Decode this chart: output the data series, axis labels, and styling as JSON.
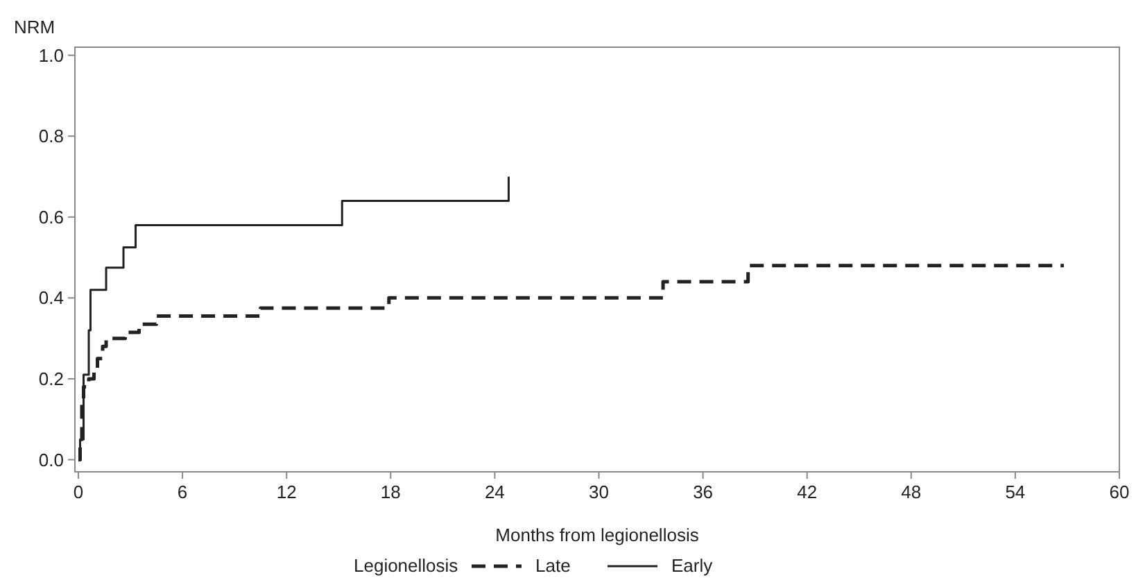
{
  "chart_data": {
    "type": "step",
    "ylabel": "NRM",
    "xlabel": "Months from legionellosis",
    "legend_title": "Legionellosis",
    "legend": "bottom",
    "grid": false,
    "marker": "none",
    "xlim": [
      -0.2,
      60
    ],
    "xticks": [
      0,
      6,
      12,
      18,
      24,
      30,
      36,
      42,
      48,
      54,
      60
    ],
    "ylim": [
      -0.03,
      1.02
    ],
    "yticks": [
      {
        "value": 0,
        "label": "0.0"
      },
      0.2,
      0.4,
      0.6,
      0.8,
      {
        "value": 1,
        "label": "1.0"
      }
    ],
    "series": [
      {
        "name": "Late",
        "color": "#222222",
        "line_style": "dashed",
        "x": [
          0,
          0.1,
          0.2,
          0.3,
          0.6,
          0.9,
          1.1,
          1.4,
          1.6,
          2.7,
          3.5,
          4.5,
          10.5,
          17.9,
          33.7,
          38.6,
          56.8
        ],
        "values": [
          0,
          0.05,
          0.15,
          0.18,
          0.2,
          0.22,
          0.25,
          0.28,
          0.3,
          0.315,
          0.335,
          0.355,
          0.375,
          0.4,
          0.44,
          0.48,
          0.48
        ]
      },
      {
        "name": "Early",
        "color": "#222222",
        "line_style": "solid",
        "x": [
          0,
          0.1,
          0.3,
          0.6,
          0.7,
          1.6,
          2.6,
          3.3,
          15.2,
          24.8
        ],
        "values": [
          0,
          0.05,
          0.21,
          0.32,
          0.42,
          0.475,
          0.525,
          0.58,
          0.64,
          0.7
        ]
      }
    ]
  }
}
